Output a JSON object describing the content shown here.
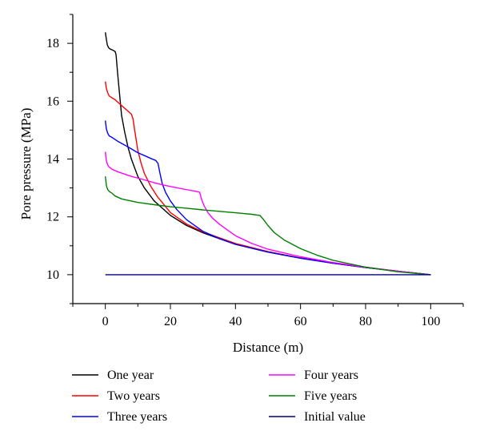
{
  "chart_data": {
    "type": "line",
    "title": "",
    "xlabel": "Distance (m)",
    "ylabel": "Pore pressure (MPa)",
    "xlim": [
      -10,
      110
    ],
    "ylim": [
      9,
      19
    ],
    "xticks": [
      0,
      20,
      40,
      60,
      80,
      100
    ],
    "yticks": [
      10,
      12,
      14,
      16,
      18
    ],
    "grid": false,
    "legend_position": "bottom",
    "series": [
      {
        "name": "One year",
        "color": "#000000",
        "x": [
          0,
          0.3,
          0.6,
          1,
          1.5,
          2,
          2.5,
          3,
          3.3,
          3.6,
          4,
          5,
          6,
          7,
          8,
          10,
          12,
          15,
          20,
          25,
          30,
          40,
          50,
          60,
          70,
          80,
          90,
          100
        ],
        "y": [
          18.38,
          18.15,
          17.95,
          17.85,
          17.8,
          17.78,
          17.75,
          17.72,
          17.6,
          17.2,
          16.7,
          15.5,
          14.9,
          14.4,
          14.0,
          13.4,
          13.0,
          12.55,
          12.05,
          11.7,
          11.45,
          11.05,
          10.78,
          10.57,
          10.4,
          10.25,
          10.12,
          10.0
        ]
      },
      {
        "name": "Two years",
        "color": "#ff0000",
        "x": [
          0,
          0.3,
          0.7,
          1.2,
          2,
          3,
          4,
          5,
          6,
          7,
          8,
          8.5,
          9,
          10,
          11,
          12,
          14,
          16,
          20,
          25,
          30,
          40,
          50,
          60,
          70,
          80,
          90,
          100
        ],
        "y": [
          16.68,
          16.45,
          16.3,
          16.18,
          16.12,
          16.05,
          15.95,
          15.85,
          15.75,
          15.65,
          15.55,
          15.4,
          15.0,
          14.3,
          13.85,
          13.5,
          13.05,
          12.7,
          12.15,
          11.75,
          11.48,
          11.08,
          10.8,
          10.58,
          10.4,
          10.25,
          10.12,
          10.0
        ]
      },
      {
        "name": "Three years",
        "color": "#0000ff",
        "x": [
          0,
          0.3,
          0.7,
          1.2,
          2,
          4,
          6,
          8,
          10,
          12,
          14,
          15.5,
          16.2,
          16.8,
          17.5,
          18.5,
          20,
          22,
          25,
          30,
          35,
          40,
          50,
          60,
          70,
          80,
          90,
          100
        ],
        "y": [
          15.33,
          15.05,
          14.9,
          14.8,
          14.75,
          14.6,
          14.48,
          14.35,
          14.22,
          14.12,
          14.02,
          13.95,
          13.85,
          13.5,
          13.15,
          12.85,
          12.55,
          12.25,
          11.9,
          11.5,
          11.25,
          11.05,
          10.78,
          10.57,
          10.4,
          10.25,
          10.12,
          10.0
        ]
      },
      {
        "name": "Four years",
        "color": "#ff00ff",
        "x": [
          0,
          0.3,
          0.7,
          1.2,
          2,
          4,
          8,
          12,
          16,
          20,
          24,
          28,
          29,
          29.6,
          30.3,
          31.5,
          33,
          35,
          40,
          45,
          50,
          60,
          70,
          80,
          90,
          100
        ],
        "y": [
          14.25,
          13.95,
          13.8,
          13.72,
          13.65,
          13.55,
          13.4,
          13.28,
          13.15,
          13.05,
          12.96,
          12.88,
          12.85,
          12.6,
          12.4,
          12.15,
          11.95,
          11.75,
          11.35,
          11.08,
          10.88,
          10.62,
          10.42,
          10.26,
          10.12,
          10.0
        ]
      },
      {
        "name": "Five years",
        "color": "#008000",
        "x": [
          0,
          0.3,
          0.7,
          1.2,
          2,
          3,
          5,
          10,
          15,
          20,
          25,
          30,
          35,
          40,
          45,
          47.5,
          48.3,
          49,
          50,
          52,
          55,
          60,
          65,
          70,
          80,
          90,
          100
        ],
        "y": [
          13.4,
          13.1,
          12.95,
          12.88,
          12.82,
          12.72,
          12.62,
          12.5,
          12.42,
          12.35,
          12.3,
          12.24,
          12.19,
          12.14,
          12.09,
          12.05,
          11.95,
          11.85,
          11.7,
          11.45,
          11.2,
          10.9,
          10.68,
          10.5,
          10.26,
          10.1,
          10.0
        ]
      },
      {
        "name": "Initial value",
        "color": "#000080",
        "x": [
          0,
          100
        ],
        "y": [
          10,
          10
        ]
      }
    ]
  }
}
